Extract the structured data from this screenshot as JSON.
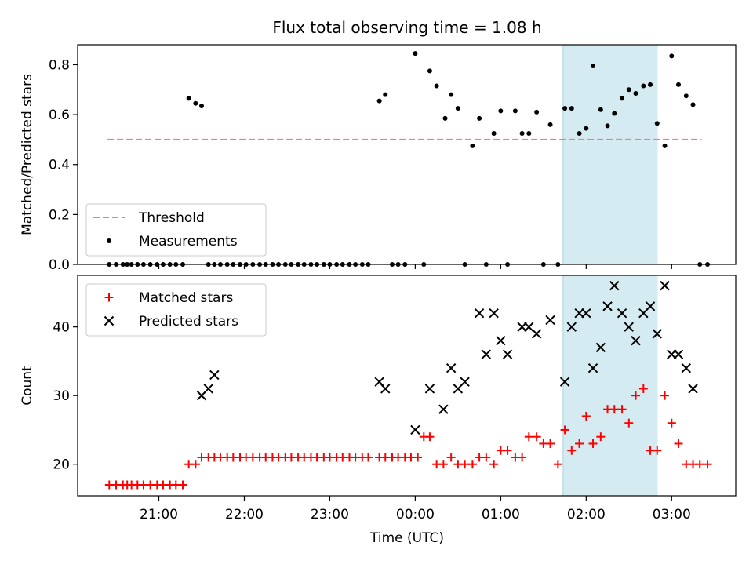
{
  "chart_data": {
    "title": "Flux total observing time = 1.08 h",
    "xlabel": "Time (UTC)",
    "x_unit": "hours since 00:00 UTC",
    "x_ticks": [
      {
        "value": -3,
        "label": "21:00"
      },
      {
        "value": -2,
        "label": "22:00"
      },
      {
        "value": -1,
        "label": "23:00"
      },
      {
        "value": 0,
        "label": "00:00"
      },
      {
        "value": 1,
        "label": "01:00"
      },
      {
        "value": 2,
        "label": "02:00"
      },
      {
        "value": 3,
        "label": "03:00"
      }
    ],
    "xlim": [
      -3.95,
      3.75
    ],
    "highlight_span": [
      1.73,
      2.83
    ],
    "colors": {
      "threshold": "#ff7b7b",
      "matched": "#ff0000",
      "predicted": "#000000",
      "measurements": "#000000",
      "highlight": "#d4ebf1"
    },
    "panels": [
      {
        "type": "scatter",
        "ylabel": "Matched/Predicted stars",
        "ylim": [
          0,
          0.88
        ],
        "y_ticks": [
          "0.0",
          "0.2",
          "0.4",
          "0.6",
          "0.8"
        ],
        "y_tick_values": [
          0,
          0.2,
          0.4,
          0.6,
          0.8
        ],
        "legend": {
          "position": "lower-left",
          "entries": [
            "Threshold",
            "Measurements"
          ]
        },
        "series": [
          {
            "name": "Threshold",
            "style": "dashed-line",
            "x": [
              -3.6,
              3.35
            ],
            "y": [
              0.5,
              0.5
            ]
          },
          {
            "name": "Measurements",
            "style": "dot",
            "x": [
              -3.58,
              -3.5,
              -3.42,
              -3.37,
              -3.32,
              -3.25,
              -3.18,
              -3.1,
              -3.02,
              -2.95,
              -2.87,
              -2.8,
              -2.72,
              -2.65,
              -2.57,
              -2.5,
              -2.42,
              -2.35,
              -2.28,
              -2.2,
              -2.13,
              -2.05,
              -1.98,
              -1.9,
              -1.82,
              -1.75,
              -1.67,
              -1.6,
              -1.52,
              -1.45,
              -1.37,
              -1.3,
              -1.22,
              -1.15,
              -1.07,
              -1.0,
              -0.92,
              -0.85,
              -0.77,
              -0.7,
              -0.62,
              -0.55,
              -0.42,
              -0.35,
              -0.27,
              -0.2,
              -0.12,
              0.0,
              0.1,
              0.17,
              0.25,
              0.35,
              0.42,
              0.5,
              0.58,
              0.67,
              0.75,
              0.83,
              0.92,
              1.0,
              1.08,
              1.17,
              1.25,
              1.33,
              1.42,
              1.5,
              1.58,
              1.67,
              1.75,
              1.83,
              1.92,
              2.0,
              2.08,
              2.17,
              2.25,
              2.33,
              2.42,
              2.5,
              2.58,
              2.67,
              2.75,
              2.83,
              2.92,
              3.0,
              3.08,
              3.17,
              3.25,
              3.33,
              3.42
            ],
            "y": [
              0,
              0,
              0,
              0,
              0,
              0,
              0,
              0,
              0,
              0,
              0,
              0,
              0,
              0.665,
              0.645,
              0.635,
              0,
              0,
              0,
              0,
              0,
              0,
              0,
              0,
              0,
              0,
              0,
              0,
              0,
              0,
              0,
              0,
              0,
              0,
              0,
              0,
              0,
              0,
              0,
              0,
              0,
              0,
              0.655,
              0.68,
              0,
              0,
              0,
              0.845,
              0,
              0.775,
              0.715,
              0.585,
              0.68,
              0.625,
              0,
              0.475,
              0.585,
              0,
              0.525,
              0.615,
              0,
              0.615,
              0.525,
              0.525,
              0.61,
              0,
              0.56,
              0,
              0.625,
              0.625,
              0.525,
              0.545,
              0.795,
              0.62,
              0.555,
              0.605,
              0.665,
              0.7,
              0.685,
              0.715,
              0.72,
              0.565,
              0.475,
              0.835,
              0.72,
              0.675,
              0.64,
              0,
              0
            ]
          }
        ]
      },
      {
        "type": "scatter",
        "ylabel": "Count",
        "ylim": [
          15.4,
          47.5
        ],
        "y_ticks": [
          "20",
          "30",
          "40"
        ],
        "y_tick_values": [
          20,
          30,
          40
        ],
        "legend": {
          "position": "top-left",
          "entries": [
            "Matched stars",
            "Predicted stars"
          ]
        },
        "series": [
          {
            "name": "Matched stars",
            "style": "plus",
            "x": [
              -3.58,
              -3.5,
              -3.42,
              -3.37,
              -3.32,
              -3.25,
              -3.18,
              -3.1,
              -3.02,
              -2.95,
              -2.87,
              -2.8,
              -2.72,
              -2.65,
              -2.57,
              -2.5,
              -2.42,
              -2.35,
              -2.28,
              -2.2,
              -2.13,
              -2.05,
              -1.98,
              -1.9,
              -1.82,
              -1.75,
              -1.67,
              -1.6,
              -1.52,
              -1.45,
              -1.37,
              -1.3,
              -1.22,
              -1.15,
              -1.07,
              -1.0,
              -0.92,
              -0.85,
              -0.77,
              -0.7,
              -0.62,
              -0.55,
              -0.42,
              -0.35,
              -0.27,
              -0.2,
              -0.12,
              -0.05,
              0.03,
              0.1,
              0.17,
              0.25,
              0.33,
              0.42,
              0.5,
              0.58,
              0.67,
              0.75,
              0.83,
              0.92,
              1.0,
              1.08,
              1.17,
              1.25,
              1.33,
              1.42,
              1.5,
              1.58,
              1.67,
              1.75,
              1.83,
              1.92,
              2.0,
              2.08,
              2.17,
              2.25,
              2.33,
              2.42,
              2.5,
              2.58,
              2.67,
              2.75,
              2.83,
              2.92,
              3.0,
              3.08,
              3.17,
              3.25,
              3.33,
              3.42
            ],
            "y": [
              17,
              17,
              17,
              17,
              17,
              17,
              17,
              17,
              17,
              17,
              17,
              17,
              17,
              20,
              20,
              21,
              21,
              21,
              21,
              21,
              21,
              21,
              21,
              21,
              21,
              21,
              21,
              21,
              21,
              21,
              21,
              21,
              21,
              21,
              21,
              21,
              21,
              21,
              21,
              21,
              21,
              21,
              21,
              21,
              21,
              21,
              21,
              21,
              21,
              24,
              24,
              20,
              20,
              21,
              20,
              20,
              20,
              21,
              21,
              20,
              22,
              22,
              21,
              21,
              24,
              24,
              23,
              23,
              20,
              25,
              22,
              23,
              27,
              23,
              24,
              28,
              28,
              28,
              26,
              30,
              31,
              22,
              22,
              30,
              26,
              23,
              20,
              20,
              20,
              20
            ]
          },
          {
            "name": "Predicted stars",
            "style": "x",
            "x": [
              -2.5,
              -2.42,
              -2.35,
              -0.42,
              -0.35,
              0.0,
              0.17,
              0.33,
              0.42,
              0.5,
              0.58,
              0.75,
              0.83,
              0.92,
              1.0,
              1.08,
              1.25,
              1.33,
              1.42,
              1.58,
              1.75,
              1.83,
              1.92,
              2.0,
              2.08,
              2.17,
              2.25,
              2.33,
              2.42,
              2.5,
              2.58,
              2.67,
              2.75,
              2.83,
              2.92,
              3.0,
              3.08,
              3.17,
              3.25
            ],
            "y": [
              30,
              31,
              33,
              32,
              31,
              25,
              31,
              28,
              34,
              31,
              32,
              42,
              36,
              42,
              38,
              36,
              40,
              40,
              39,
              41,
              32,
              40,
              42,
              42,
              34,
              37,
              43,
              46,
              42,
              40,
              38,
              42,
              43,
              39,
              46,
              36,
              36,
              34,
              31
            ]
          }
        ]
      }
    ]
  }
}
